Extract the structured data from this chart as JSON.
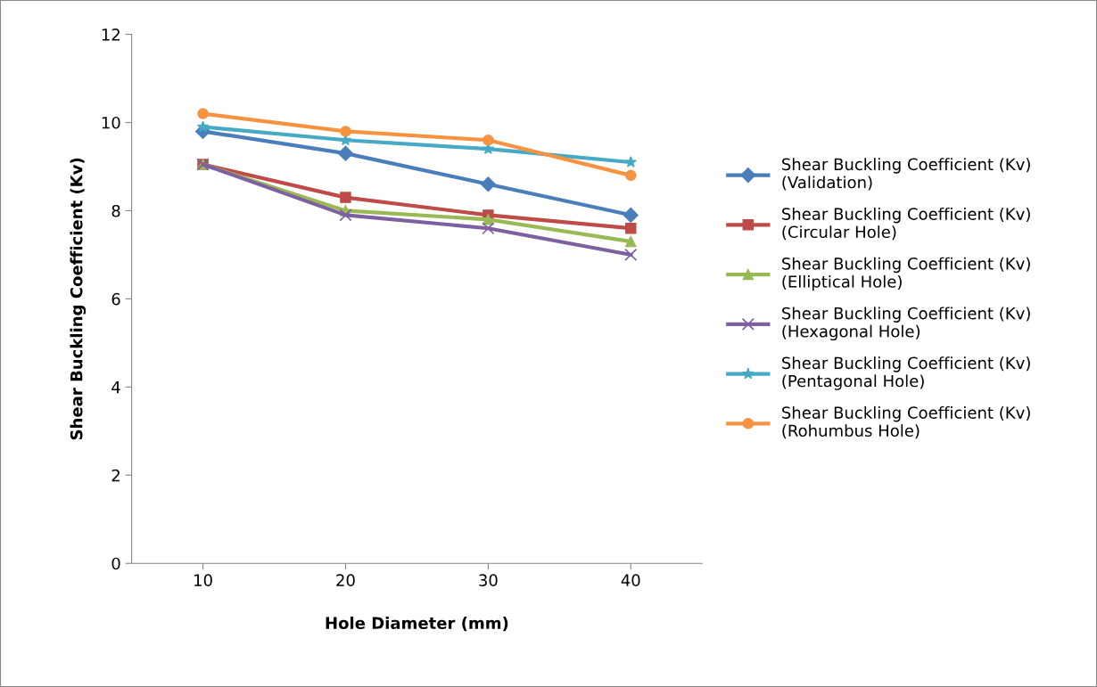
{
  "chart_data": {
    "type": "line",
    "xlabel": "Hole Diameter (mm)",
    "ylabel": "Shear Buckling Coefficient (Kv)",
    "categories": [
      "10",
      "20",
      "30",
      "40"
    ],
    "ylim": [
      0,
      12
    ],
    "yticks": [
      0,
      2,
      4,
      6,
      8,
      10,
      12
    ],
    "grid": false,
    "legend": "right",
    "line_style": "solid",
    "series": [
      {
        "name": "Shear Buckling Coefficient (Kv)\n(Validation)",
        "color": "#4a7ebb",
        "marker": "diamond",
        "values": [
          9.8,
          9.3,
          8.6,
          7.9
        ]
      },
      {
        "name": "Shear Buckling Coefficient (Kv)\n(Circular Hole)",
        "color": "#be4b48",
        "marker": "square",
        "values": [
          9.05,
          8.3,
          7.9,
          7.6
        ]
      },
      {
        "name": "Shear Buckling Coefficient (Kv)\n(Elliptical Hole)",
        "color": "#98b954",
        "marker": "triangle",
        "values": [
          9.05,
          8.0,
          7.8,
          7.3
        ]
      },
      {
        "name": "Shear Buckling Coefficient (Kv)\n(Hexagonal Hole)",
        "color": "#7d60a0",
        "marker": "cross",
        "values": [
          9.05,
          7.9,
          7.6,
          7.0
        ]
      },
      {
        "name": "Shear Buckling Coefficient (Kv)\n(Pentagonal Hole)",
        "color": "#46aac5",
        "marker": "star",
        "values": [
          9.9,
          9.6,
          9.4,
          9.1
        ]
      },
      {
        "name": "Shear Buckling Coefficient (Kv)\n(Rohumbus Hole)",
        "color": "#f69240",
        "marker": "circle",
        "values": [
          10.2,
          9.8,
          9.6,
          8.8
        ]
      }
    ]
  }
}
